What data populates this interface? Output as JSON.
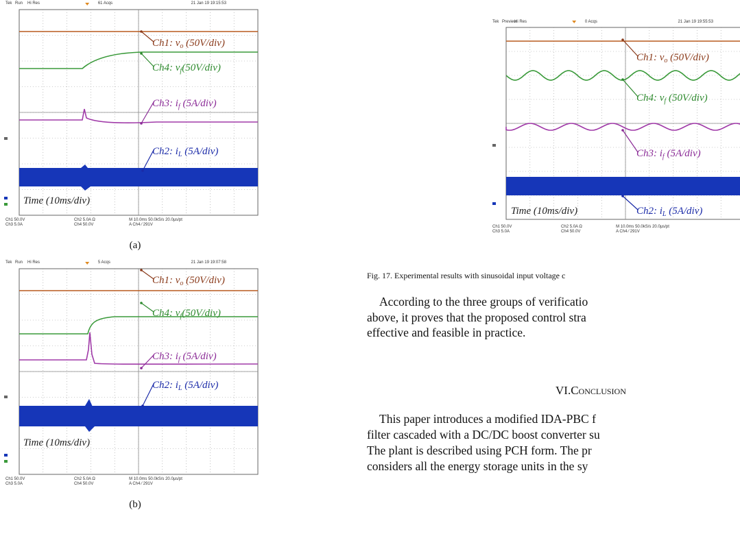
{
  "figures": [
    {
      "header": {
        "brand": "Tek",
        "mode": "Run",
        "acq_mode": "Hi Res",
        "acqs": "61 Acqs",
        "date": "21 Jan 19 19:15:53"
      },
      "annotations": [
        {
          "pre": "Ch1: v",
          "sub": "o",
          "post": " (50V/div)"
        },
        {
          "pre": "Ch4: v",
          "sub": "f",
          "post": "(50V/div)"
        },
        {
          "pre": "Ch3: i",
          "sub": "f",
          "post": " (5A/div)"
        },
        {
          "pre": "Ch2: i",
          "sub": "L",
          "post": " (5A/div)"
        }
      ],
      "time_label": "Time (10ms/div)",
      "footer": [
        "Ch1  50.0V",
        "Ch3  5.0A",
        "Ch2  5.0A   Ω",
        "Ch4  50.0V",
        "M 10.0ms 50.0kS/s     20.0µs/pt",
        "A  Ch4  ⁄  291V"
      ],
      "label": "(a)"
    },
    {
      "header": {
        "brand": "Tek",
        "mode": "Run",
        "acq_mode": "Hi Res",
        "acqs": "5 Acqs",
        "date": "21 Jan 19 19:07:58"
      },
      "annotations": [
        {
          "pre": "Ch1: v",
          "sub": "o",
          "post": " (50V/div)"
        },
        {
          "pre": "Ch4: v",
          "sub": "f",
          "post": "(50V/div)"
        },
        {
          "pre": "Ch3: i",
          "sub": "f",
          "post": " (5A/div)"
        },
        {
          "pre": "Ch2: i",
          "sub": "L",
          "post": " (5A/div)"
        }
      ],
      "time_label": "Time (10ms/div)",
      "footer": [
        "Ch1  50.0V",
        "Ch3  5.0A",
        "Ch2  5.0A   Ω",
        "Ch4  50.0V",
        "M 10.0ms 50.0kS/s     20.0µs/pt",
        "A  Ch4  ⁄  291V"
      ],
      "label": "(b)"
    },
    {
      "header": {
        "brand": "Tek",
        "mode": "Preview",
        "acq_mode": "Hi Res",
        "acqs": "0 Acqs",
        "date": "21 Jan 19 19:55:53"
      },
      "annotations": [
        {
          "pre": "Ch1: v",
          "sub": "o",
          "post": " (50V/div)"
        },
        {
          "pre": "Ch4: v",
          "sub": "f",
          "post": " (50V/div)"
        },
        {
          "pre": "Ch3: i",
          "sub": "f",
          "post": " (5A/div)"
        },
        {
          "pre": "Ch2: i",
          "sub": "L",
          "post": " (5A/div)"
        }
      ],
      "time_label": "Time (10ms/div)",
      "footer": [
        "Ch1  50.0V",
        "Ch3  5.0A",
        "Ch2  5.0A   Ω",
        "Ch4  50.0V",
        "M 10.0ms 50.0kS/s     20.0µs/pt",
        "A  Ch4  ⁄  291V"
      ]
    }
  ],
  "caption": "Fig. 17.  Experimental results with sinusoidal input voltage c",
  "paragraph1": [
    "According to the three groups of verificatio",
    "above, it proves that the proposed control stra",
    "effective and feasible in practice."
  ],
  "section_heading": "VI.Conclusion",
  "paragraph2": [
    "This paper introduces a modified IDA-PBC f",
    "filter cascaded with a DC/DC boost converter su",
    "The plant is described using PCH form. The pr",
    "considers all the energy storage units in the sy"
  ]
}
